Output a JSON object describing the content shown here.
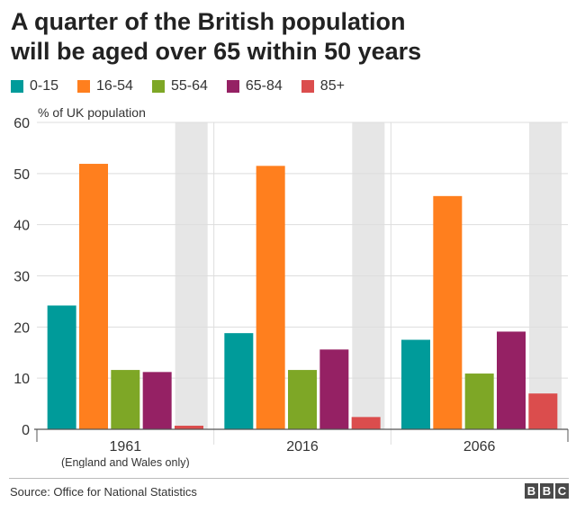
{
  "header": {
    "title_line1": "A quarter of the British population",
    "title_line2": "will be aged over 65 within 50 years"
  },
  "footer": {
    "source": "Source: Office for National Statistics",
    "logo_letters": [
      "B",
      "B",
      "C"
    ]
  },
  "chart_data": {
    "type": "bar",
    "title": "A quarter of the British population will be aged over 65 within 50 years",
    "ylabel": "% of UK population",
    "xlabel": "",
    "ylim": [
      0,
      60
    ],
    "yticks": [
      0,
      10,
      20,
      30,
      40,
      50,
      60
    ],
    "grid": true,
    "legend_position": "top-left",
    "categories": [
      "1961",
      "2016",
      "2066"
    ],
    "category_notes": [
      "(England and Wales only)",
      "",
      ""
    ],
    "shaded_series": [
      "85+"
    ],
    "series": [
      {
        "name": "0-15",
        "color": "#009b9a",
        "values": [
          24.2,
          18.8,
          17.5
        ]
      },
      {
        "name": "16-54",
        "color": "#ff7f1e",
        "values": [
          51.9,
          51.5,
          45.6
        ]
      },
      {
        "name": "55-64",
        "color": "#7ea726",
        "values": [
          11.6,
          11.6,
          10.9
        ]
      },
      {
        "name": "65-84",
        "color": "#952164",
        "values": [
          11.2,
          15.6,
          19.1
        ]
      },
      {
        "name": "85+",
        "color": "#db4d4d",
        "values": [
          0.7,
          2.4,
          7.0
        ]
      }
    ]
  }
}
